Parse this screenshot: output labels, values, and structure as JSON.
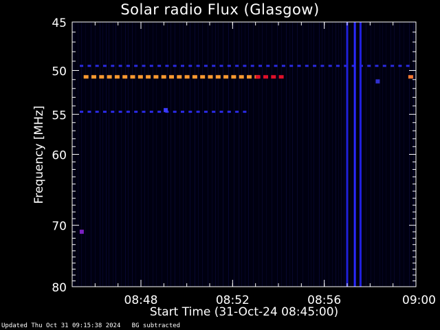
{
  "chart_data": {
    "type": "heatmap",
    "title": "Solar radio Flux (Glasgow)",
    "xlabel": "Start Time (31-Oct-24 08:45:00)",
    "ylabel": "Frequency [MHz]",
    "xlim": [
      "08:45",
      "09:00"
    ],
    "ylim": [
      45,
      80
    ],
    "x_ticks": [
      "08:48",
      "08:52",
      "08:56",
      "09:00"
    ],
    "y_ticks": [
      45,
      50,
      55,
      60,
      70,
      80
    ],
    "background_color": "#000010",
    "features": [
      {
        "kind": "band",
        "freq_mhz": 49.5,
        "t_start": "08:45:20",
        "t_end": "08:59:50",
        "color": "#2a2ae0",
        "intensity": "low"
      },
      {
        "kind": "band",
        "freq_mhz": 50.7,
        "t_start": "08:45:30",
        "t_end": "08:53:00",
        "color": "#ff9a30",
        "intensity": "high"
      },
      {
        "kind": "band",
        "freq_mhz": 50.7,
        "t_start": "08:53:00",
        "t_end": "08:54:10",
        "color": "#e0102a",
        "intensity": "high"
      },
      {
        "kind": "band",
        "freq_mhz": 50.7,
        "t_start": "08:59:40",
        "t_end": "08:59:55",
        "color": "#ff7a30",
        "intensity": "high"
      },
      {
        "kind": "band",
        "freq_mhz": 54.7,
        "t_start": "08:45:20",
        "t_end": "08:52:45",
        "color": "#2a2ae6",
        "intensity": "low"
      },
      {
        "kind": "spot",
        "freq_mhz": 54.5,
        "time": "08:49:05",
        "color": "#3a3aff"
      },
      {
        "kind": "spot",
        "freq_mhz": 71.0,
        "time": "08:45:25",
        "color": "#7a20c0"
      },
      {
        "kind": "spot",
        "freq_mhz": 51.2,
        "time": "08:58:20",
        "color": "#3030d0"
      },
      {
        "kind": "column",
        "time": "08:57:00",
        "f_start": 45,
        "f_end": 80,
        "color": "#2020d8"
      },
      {
        "kind": "column",
        "time": "08:57:20",
        "f_start": 45,
        "f_end": 80,
        "color": "#2a2aff"
      },
      {
        "kind": "column",
        "time": "08:57:35",
        "f_start": 45,
        "f_end": 80,
        "color": "#2020e0"
      }
    ]
  },
  "footer": "Updated Thu Oct 31 09:15:38 2024   BG subtracted"
}
